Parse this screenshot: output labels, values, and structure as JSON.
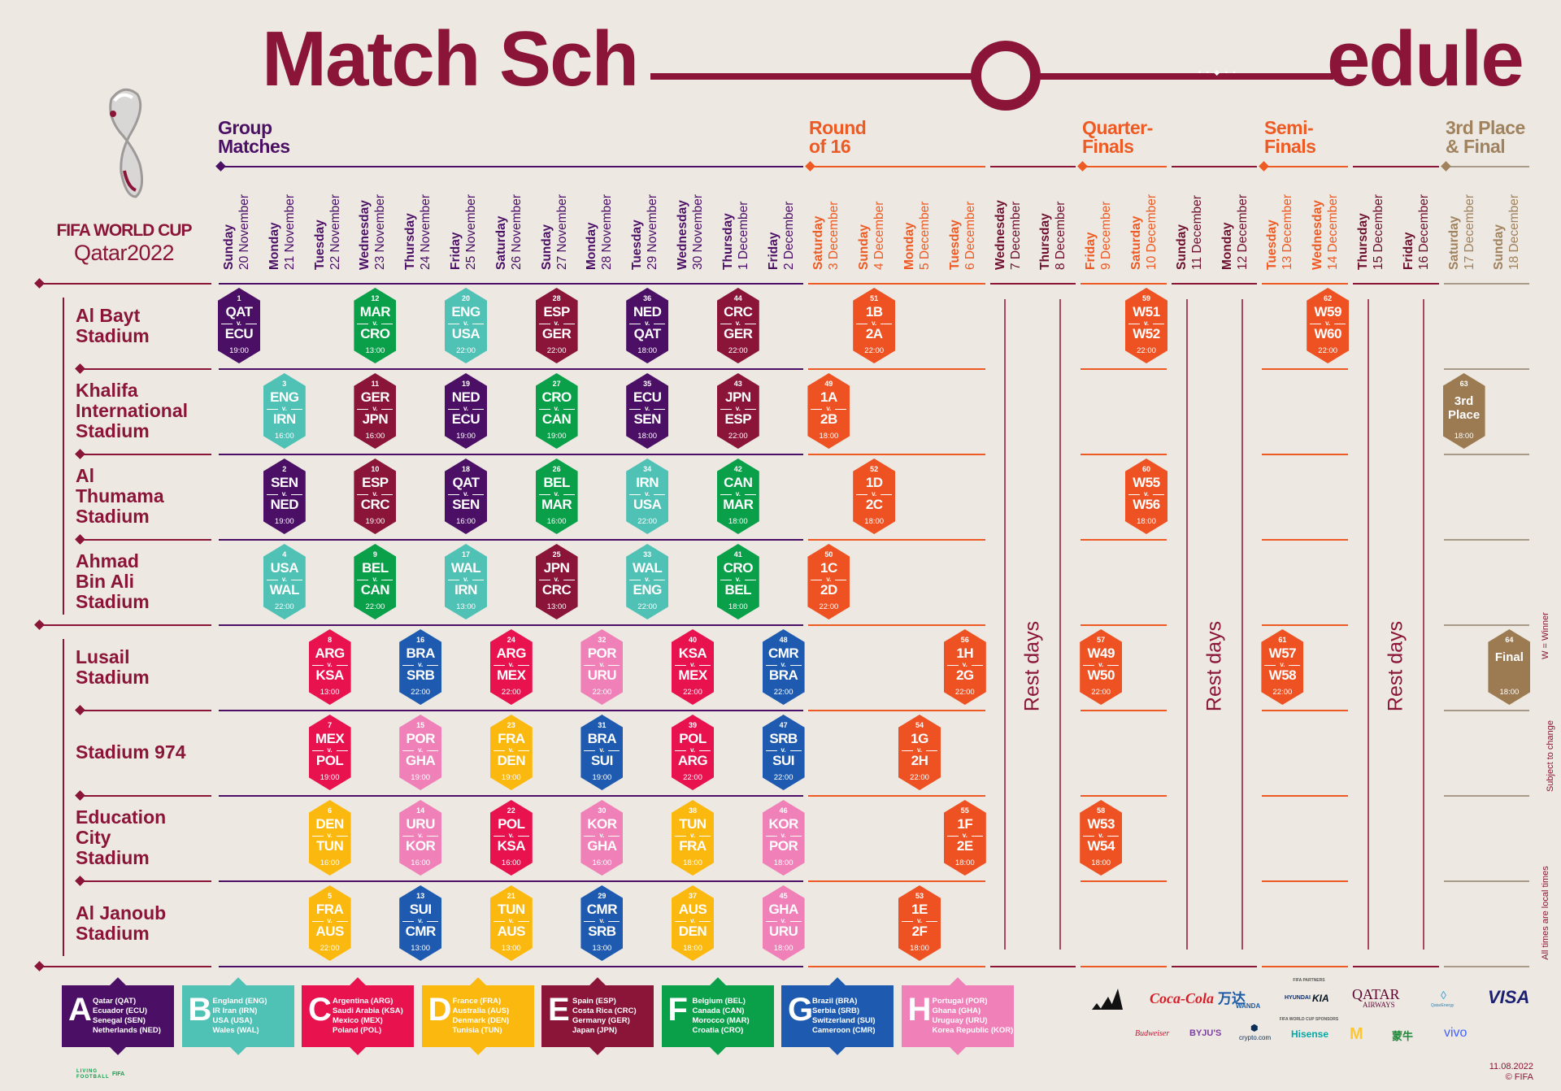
{
  "title": {
    "left": "Match Sch",
    "right": "edule",
    "dots": "• • ◆ • •"
  },
  "brand": {
    "line1": "FIFA WORLD CUP",
    "line2": "Qatar2022"
  },
  "colors": {
    "A": "#4b0f66",
    "B": "#4fc1b5",
    "C": "#e8124f",
    "D": "#fbb80f",
    "E": "#8a1538",
    "F": "#0aa04a",
    "G": "#1e5bb0",
    "H": "#f080b8",
    "KO": "#ee5223",
    "FINAL": "#9c7a52"
  },
  "phases": [
    {
      "key": "group",
      "title": "Group\nMatches",
      "color": "#4b0f66"
    },
    {
      "key": "r16",
      "title": "Round\nof 16",
      "color": "#ee5a24"
    },
    {
      "key": "qf",
      "title": "Quarter-\nFinals",
      "color": "#ee5a24"
    },
    {
      "key": "sf",
      "title": "Semi-\nFinals",
      "color": "#ee5a24"
    },
    {
      "key": "final",
      "title": "3rd Place\n& Final",
      "color": "#a0825e"
    }
  ],
  "days": [
    {
      "weekday": "Sunday",
      "date": "20 November",
      "phase": "group"
    },
    {
      "weekday": "Monday",
      "date": "21 November",
      "phase": "group"
    },
    {
      "weekday": "Tuesday",
      "date": "22 November",
      "phase": "group"
    },
    {
      "weekday": "Wednesday",
      "date": "23 November",
      "phase": "group"
    },
    {
      "weekday": "Thursday",
      "date": "24 November",
      "phase": "group"
    },
    {
      "weekday": "Friday",
      "date": "25 November",
      "phase": "group"
    },
    {
      "weekday": "Saturday",
      "date": "26 November",
      "phase": "group"
    },
    {
      "weekday": "Sunday",
      "date": "27 November",
      "phase": "group"
    },
    {
      "weekday": "Monday",
      "date": "28 November",
      "phase": "group"
    },
    {
      "weekday": "Tuesday",
      "date": "29 November",
      "phase": "group"
    },
    {
      "weekday": "Wednesday",
      "date": "30 November",
      "phase": "group"
    },
    {
      "weekday": "Thursday",
      "date": "1 December",
      "phase": "group"
    },
    {
      "weekday": "Friday",
      "date": "2 December",
      "phase": "group"
    },
    {
      "weekday": "Saturday",
      "date": "3 December",
      "phase": "r16"
    },
    {
      "weekday": "Sunday",
      "date": "4 December",
      "phase": "r16"
    },
    {
      "weekday": "Monday",
      "date": "5 December",
      "phase": "r16"
    },
    {
      "weekday": "Tuesday",
      "date": "6 December",
      "phase": "r16"
    },
    {
      "weekday": "Wednesday",
      "date": "7 December",
      "phase": "rest"
    },
    {
      "weekday": "Thursday",
      "date": "8 December",
      "phase": "rest"
    },
    {
      "weekday": "Friday",
      "date": "9 December",
      "phase": "qf"
    },
    {
      "weekday": "Saturday",
      "date": "10 December",
      "phase": "qf"
    },
    {
      "weekday": "Sunday",
      "date": "11 December",
      "phase": "rest"
    },
    {
      "weekday": "Monday",
      "date": "12 December",
      "phase": "rest"
    },
    {
      "weekday": "Tuesday",
      "date": "13 December",
      "phase": "sf"
    },
    {
      "weekday": "Wednesday",
      "date": "14 December",
      "phase": "sf"
    },
    {
      "weekday": "Thursday",
      "date": "15 December",
      "phase": "rest"
    },
    {
      "weekday": "Friday",
      "date": "16 December",
      "phase": "rest"
    },
    {
      "weekday": "Saturday",
      "date": "17 December",
      "phase": "final"
    },
    {
      "weekday": "Sunday",
      "date": "18 December",
      "phase": "final"
    }
  ],
  "rest_label": "Rest days",
  "stadiums": [
    "Al Bayt\nStadium",
    "Khalifa\nInternational\nStadium",
    "Al\nThumama\nStadium",
    "Ahmad\nBin Ali\nStadium",
    "Lusail\nStadium",
    "Stadium 974",
    "Education\nCity\nStadium",
    "Al Janoub\nStadium"
  ],
  "vs": "v.",
  "matches": [
    {
      "n": 1,
      "s": 0,
      "d": 0,
      "h": "QAT",
      "a": "ECU",
      "t": "19:00",
      "g": "A"
    },
    {
      "n": 12,
      "s": 0,
      "d": 3,
      "h": "MAR",
      "a": "CRO",
      "t": "13:00",
      "g": "F"
    },
    {
      "n": 20,
      "s": 0,
      "d": 5,
      "h": "ENG",
      "a": "USA",
      "t": "22:00",
      "g": "B"
    },
    {
      "n": 28,
      "s": 0,
      "d": 7,
      "h": "ESP",
      "a": "GER",
      "t": "22:00",
      "g": "E"
    },
    {
      "n": 36,
      "s": 0,
      "d": 9,
      "h": "NED",
      "a": "QAT",
      "t": "18:00",
      "g": "A"
    },
    {
      "n": 44,
      "s": 0,
      "d": 11,
      "h": "CRC",
      "a": "GER",
      "t": "22:00",
      "g": "E"
    },
    {
      "n": 51,
      "s": 0,
      "d": 14,
      "h": "1B",
      "a": "2A",
      "t": "22:00",
      "g": "KO"
    },
    {
      "n": 59,
      "s": 0,
      "d": 20,
      "h": "W51",
      "a": "W52",
      "t": "22:00",
      "g": "KO"
    },
    {
      "n": 62,
      "s": 0,
      "d": 24,
      "h": "W59",
      "a": "W60",
      "t": "22:00",
      "g": "KO"
    },
    {
      "n": 3,
      "s": 1,
      "d": 1,
      "h": "ENG",
      "a": "IRN",
      "t": "16:00",
      "g": "B"
    },
    {
      "n": 11,
      "s": 1,
      "d": 3,
      "h": "GER",
      "a": "JPN",
      "t": "16:00",
      "g": "E"
    },
    {
      "n": 19,
      "s": 1,
      "d": 5,
      "h": "NED",
      "a": "ECU",
      "t": "19:00",
      "g": "A"
    },
    {
      "n": 27,
      "s": 1,
      "d": 7,
      "h": "CRO",
      "a": "CAN",
      "t": "19:00",
      "g": "F"
    },
    {
      "n": 35,
      "s": 1,
      "d": 9,
      "h": "ECU",
      "a": "SEN",
      "t": "18:00",
      "g": "A"
    },
    {
      "n": 43,
      "s": 1,
      "d": 11,
      "h": "JPN",
      "a": "ESP",
      "t": "22:00",
      "g": "E"
    },
    {
      "n": 49,
      "s": 1,
      "d": 13,
      "h": "1A",
      "a": "2B",
      "t": "18:00",
      "g": "KO"
    },
    {
      "n": 63,
      "s": 1,
      "d": 27,
      "label": "3rd\nPlace",
      "t": "18:00",
      "g": "FINAL"
    },
    {
      "n": 2,
      "s": 2,
      "d": 1,
      "h": "SEN",
      "a": "NED",
      "t": "19:00",
      "g": "A"
    },
    {
      "n": 10,
      "s": 2,
      "d": 3,
      "h": "ESP",
      "a": "CRC",
      "t": "19:00",
      "g": "E"
    },
    {
      "n": 18,
      "s": 2,
      "d": 5,
      "h": "QAT",
      "a": "SEN",
      "t": "16:00",
      "g": "A"
    },
    {
      "n": 26,
      "s": 2,
      "d": 7,
      "h": "BEL",
      "a": "MAR",
      "t": "16:00",
      "g": "F"
    },
    {
      "n": 34,
      "s": 2,
      "d": 9,
      "h": "IRN",
      "a": "USA",
      "t": "22:00",
      "g": "B"
    },
    {
      "n": 42,
      "s": 2,
      "d": 11,
      "h": "CAN",
      "a": "MAR",
      "t": "18:00",
      "g": "F"
    },
    {
      "n": 52,
      "s": 2,
      "d": 14,
      "h": "1D",
      "a": "2C",
      "t": "18:00",
      "g": "KO"
    },
    {
      "n": 60,
      "s": 2,
      "d": 20,
      "h": "W55",
      "a": "W56",
      "t": "18:00",
      "g": "KO"
    },
    {
      "n": 4,
      "s": 3,
      "d": 1,
      "h": "USA",
      "a": "WAL",
      "t": "22:00",
      "g": "B"
    },
    {
      "n": 9,
      "s": 3,
      "d": 3,
      "h": "BEL",
      "a": "CAN",
      "t": "22:00",
      "g": "F"
    },
    {
      "n": 17,
      "s": 3,
      "d": 5,
      "h": "WAL",
      "a": "IRN",
      "t": "13:00",
      "g": "B"
    },
    {
      "n": 25,
      "s": 3,
      "d": 7,
      "h": "JPN",
      "a": "CRC",
      "t": "13:00",
      "g": "E"
    },
    {
      "n": 33,
      "s": 3,
      "d": 9,
      "h": "WAL",
      "a": "ENG",
      "t": "22:00",
      "g": "B"
    },
    {
      "n": 41,
      "s": 3,
      "d": 11,
      "h": "CRO",
      "a": "BEL",
      "t": "18:00",
      "g": "F"
    },
    {
      "n": 50,
      "s": 3,
      "d": 13,
      "h": "1C",
      "a": "2D",
      "t": "22:00",
      "g": "KO"
    },
    {
      "n": 8,
      "s": 4,
      "d": 2,
      "h": "ARG",
      "a": "KSA",
      "t": "13:00",
      "g": "C"
    },
    {
      "n": 16,
      "s": 4,
      "d": 4,
      "h": "BRA",
      "a": "SRB",
      "t": "22:00",
      "g": "G"
    },
    {
      "n": 24,
      "s": 4,
      "d": 6,
      "h": "ARG",
      "a": "MEX",
      "t": "22:00",
      "g": "C"
    },
    {
      "n": 32,
      "s": 4,
      "d": 8,
      "h": "POR",
      "a": "URU",
      "t": "22:00",
      "g": "H"
    },
    {
      "n": 40,
      "s": 4,
      "d": 10,
      "h": "KSA",
      "a": "MEX",
      "t": "22:00",
      "g": "C"
    },
    {
      "n": 48,
      "s": 4,
      "d": 12,
      "h": "CMR",
      "a": "BRA",
      "t": "22:00",
      "g": "G"
    },
    {
      "n": 56,
      "s": 4,
      "d": 16,
      "h": "1H",
      "a": "2G",
      "t": "22:00",
      "g": "KO"
    },
    {
      "n": 57,
      "s": 4,
      "d": 19,
      "h": "W49",
      "a": "W50",
      "t": "22:00",
      "g": "KO"
    },
    {
      "n": 61,
      "s": 4,
      "d": 23,
      "h": "W57",
      "a": "W58",
      "t": "22:00",
      "g": "KO"
    },
    {
      "n": 64,
      "s": 4,
      "d": 28,
      "label": "Final",
      "t": "18:00",
      "g": "FINAL"
    },
    {
      "n": 7,
      "s": 5,
      "d": 2,
      "h": "MEX",
      "a": "POL",
      "t": "19:00",
      "g": "C"
    },
    {
      "n": 15,
      "s": 5,
      "d": 4,
      "h": "POR",
      "a": "GHA",
      "t": "19:00",
      "g": "H"
    },
    {
      "n": 23,
      "s": 5,
      "d": 6,
      "h": "FRA",
      "a": "DEN",
      "t": "19:00",
      "g": "D"
    },
    {
      "n": 31,
      "s": 5,
      "d": 8,
      "h": "BRA",
      "a": "SUI",
      "t": "19:00",
      "g": "G"
    },
    {
      "n": 39,
      "s": 5,
      "d": 10,
      "h": "POL",
      "a": "ARG",
      "t": "22:00",
      "g": "C"
    },
    {
      "n": 47,
      "s": 5,
      "d": 12,
      "h": "SRB",
      "a": "SUI",
      "t": "22:00",
      "g": "G"
    },
    {
      "n": 54,
      "s": 5,
      "d": 15,
      "h": "1G",
      "a": "2H",
      "t": "22:00",
      "g": "KO"
    },
    {
      "n": 6,
      "s": 6,
      "d": 2,
      "h": "DEN",
      "a": "TUN",
      "t": "16:00",
      "g": "D"
    },
    {
      "n": 14,
      "s": 6,
      "d": 4,
      "h": "URU",
      "a": "KOR",
      "t": "16:00",
      "g": "H"
    },
    {
      "n": 22,
      "s": 6,
      "d": 6,
      "h": "POL",
      "a": "KSA",
      "t": "16:00",
      "g": "C"
    },
    {
      "n": 30,
      "s": 6,
      "d": 8,
      "h": "KOR",
      "a": "GHA",
      "t": "16:00",
      "g": "H"
    },
    {
      "n": 38,
      "s": 6,
      "d": 10,
      "h": "TUN",
      "a": "FRA",
      "t": "18:00",
      "g": "D"
    },
    {
      "n": 46,
      "s": 6,
      "d": 12,
      "h": "KOR",
      "a": "POR",
      "t": "18:00",
      "g": "H"
    },
    {
      "n": 55,
      "s": 6,
      "d": 16,
      "h": "1F",
      "a": "2E",
      "t": "18:00",
      "g": "KO"
    },
    {
      "n": 58,
      "s": 6,
      "d": 19,
      "h": "W53",
      "a": "W54",
      "t": "18:00",
      "g": "KO"
    },
    {
      "n": 5,
      "s": 7,
      "d": 2,
      "h": "FRA",
      "a": "AUS",
      "t": "22:00",
      "g": "D"
    },
    {
      "n": 13,
      "s": 7,
      "d": 4,
      "h": "SUI",
      "a": "CMR",
      "t": "13:00",
      "g": "G"
    },
    {
      "n": 21,
      "s": 7,
      "d": 6,
      "h": "TUN",
      "a": "AUS",
      "t": "13:00",
      "g": "D"
    },
    {
      "n": 29,
      "s": 7,
      "d": 8,
      "h": "CMR",
      "a": "SRB",
      "t": "13:00",
      "g": "G"
    },
    {
      "n": 37,
      "s": 7,
      "d": 10,
      "h": "AUS",
      "a": "DEN",
      "t": "18:00",
      "g": "D"
    },
    {
      "n": 45,
      "s": 7,
      "d": 12,
      "h": "GHA",
      "a": "URU",
      "t": "18:00",
      "g": "H"
    },
    {
      "n": 53,
      "s": 7,
      "d": 15,
      "h": "1E",
      "a": "2F",
      "t": "18:00",
      "g": "KO"
    }
  ],
  "groups": [
    {
      "letter": "A",
      "teams": [
        "Qatar (QAT)",
        "Ecuador (ECU)",
        "Senegal (SEN)",
        "Netherlands (NED)"
      ]
    },
    {
      "letter": "B",
      "teams": [
        "England (ENG)",
        "IR Iran (IRN)",
        "USA (USA)",
        "Wales (WAL)"
      ]
    },
    {
      "letter": "C",
      "teams": [
        "Argentina (ARG)",
        "Saudi Arabia (KSA)",
        "Mexico (MEX)",
        "Poland (POL)"
      ]
    },
    {
      "letter": "D",
      "teams": [
        "France (FRA)",
        "Australia (AUS)",
        "Denmark (DEN)",
        "Tunisia (TUN)"
      ]
    },
    {
      "letter": "E",
      "teams": [
        "Spain (ESP)",
        "Costa Rica (CRC)",
        "Germany (GER)",
        "Japan (JPN)"
      ]
    },
    {
      "letter": "F",
      "teams": [
        "Belgium (BEL)",
        "Canada (CAN)",
        "Morocco (MAR)",
        "Croatia (CRO)"
      ]
    },
    {
      "letter": "G",
      "teams": [
        "Brazil (BRA)",
        "Serbia (SRB)",
        "Switzerland (SUI)",
        "Cameroon (CMR)"
      ]
    },
    {
      "letter": "H",
      "teams": [
        "Portugal (POR)",
        "Ghana (GHA)",
        "Uruguay (URU)",
        "Korea Republic (KOR)"
      ]
    }
  ],
  "notes": {
    "winner": "W = Winner",
    "subject": "Subject to change",
    "local": "All times are local times"
  },
  "sponsors": {
    "partners_label": "FIFA PARTNERS",
    "sponsors_label": "FIFA WORLD CUP SPONSORS",
    "partners": [
      "Coca-Cola",
      "万达",
      "WANDA",
      "HYUNDAI",
      "KIA",
      "QATAR",
      "AIRWAYS",
      "QatarEnergy",
      "VISA"
    ],
    "sponsors": [
      "Budweiser",
      "BYJU'S",
      "crypto.com",
      "Hisense",
      "M",
      "蒙牛",
      "vivo"
    ]
  },
  "footer": {
    "living": "LIVING FOOTBALL",
    "fifa": "FIFA",
    "date": "11.08.2022",
    "copyright": "© FIFA"
  }
}
